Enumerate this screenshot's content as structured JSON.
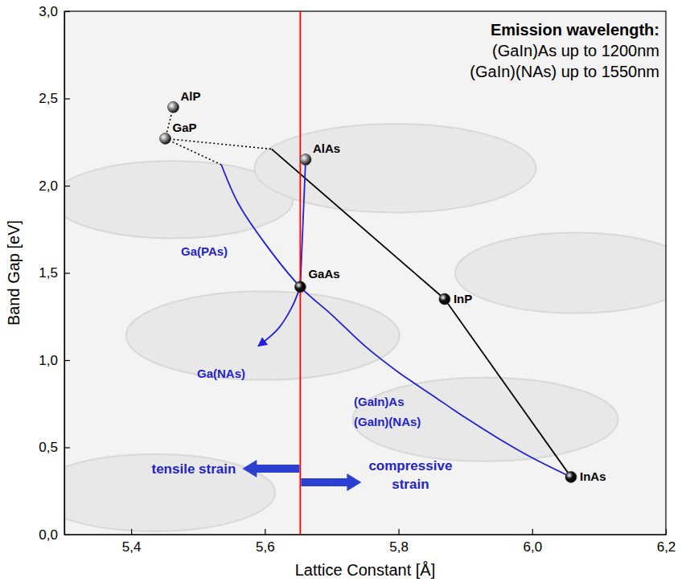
{
  "chart_data": {
    "type": "scatter",
    "x_label": "Lattice Constant [Å]",
    "y_label": "Band Gap [eV]",
    "xlim": [
      5.3,
      6.2
    ],
    "ylim": [
      0,
      3.0
    ],
    "xticks": [
      {
        "value": 5.4,
        "label": "5,4"
      },
      {
        "value": 5.6,
        "label": "5,6"
      },
      {
        "value": 5.8,
        "label": "5,8"
      },
      {
        "value": 6.0,
        "label": "6,0"
      },
      {
        "value": 6.2,
        "label": "6,2"
      }
    ],
    "yticks": [
      {
        "value": 0,
        "label": "0,0"
      },
      {
        "value": 0.5,
        "label": "0,5"
      },
      {
        "value": 1.0,
        "label": "1,0"
      },
      {
        "value": 1.5,
        "label": "1,5"
      },
      {
        "value": 2.0,
        "label": "2,0"
      },
      {
        "value": 2.5,
        "label": "2,5"
      },
      {
        "value": 3.0,
        "label": "3,0"
      }
    ],
    "grid": false,
    "series": [
      {
        "type": "scatter",
        "marker": "circle",
        "labels": [
          "AlP",
          "GaP",
          "AlAs",
          "GaAs",
          "InP",
          "InAs"
        ],
        "x": [
          5.463,
          5.451,
          5.661,
          5.653,
          5.869,
          6.058
        ],
        "values": [
          2.45,
          2.27,
          2.15,
          1.42,
          1.35,
          0.33
        ],
        "colors": [
          "#8a8a8a",
          "#8a8a8a",
          "#8a8a8a",
          "#111111",
          "#111111",
          "#111111"
        ]
      },
      {
        "type": "line",
        "line_style": "dotted",
        "color": "#000000",
        "x": [
          5.463,
          5.451
        ],
        "values": [
          2.45,
          2.27
        ]
      },
      {
        "type": "line",
        "line_style": "dotted",
        "color": "#000000",
        "x": [
          5.451,
          5.61
        ],
        "values": [
          2.27,
          2.21
        ]
      },
      {
        "type": "line",
        "line_style": "dotted",
        "color": "#000000",
        "x": [
          5.451,
          5.535
        ],
        "values": [
          2.27,
          2.12
        ]
      },
      {
        "type": "line",
        "line_style": "solid",
        "color": "#000000",
        "x": [
          5.61,
          5.869
        ],
        "values": [
          2.21,
          1.35
        ]
      },
      {
        "type": "line",
        "line_style": "solid",
        "color": "#000000",
        "x": [
          5.869,
          6.058
        ],
        "values": [
          1.35,
          0.33
        ]
      },
      {
        "type": "line",
        "line_style": "solid",
        "color": "#1f1fe0",
        "x": [
          5.535,
          5.56,
          5.6,
          5.653,
          5.7,
          5.75,
          5.8,
          5.85,
          5.9,
          5.95,
          6.0,
          6.058
        ],
        "values": [
          2.12,
          1.9,
          1.67,
          1.42,
          1.26,
          1.08,
          0.93,
          0.8,
          0.67,
          0.55,
          0.44,
          0.33
        ]
      },
      {
        "type": "line",
        "line_style": "solid",
        "color": "#1f1fe0",
        "x": [
          5.653,
          5.661
        ],
        "values": [
          1.42,
          2.15
        ]
      },
      {
        "type": "line",
        "line_style": "solid",
        "color": "#1f1fe0",
        "marker": "arrow",
        "x": [
          5.653,
          5.64,
          5.62,
          5.59
        ],
        "values": [
          1.42,
          1.3,
          1.18,
          1.08
        ]
      },
      {
        "type": "line",
        "line_style": "solid",
        "color": "#ff0000",
        "x": [
          5.653,
          5.653
        ],
        "values": [
          0,
          3.0
        ]
      }
    ],
    "annotations": [
      "Ga(PAs)",
      "Ga(NAs)",
      "(GaIn)As",
      "(GaIn)(NAs)",
      "tensile strain",
      "compressive strain",
      "Emission wavelength:",
      "(GaIn)As up to 1200nm",
      "(GaIn)(NAs) up to 1550nm"
    ]
  }
}
